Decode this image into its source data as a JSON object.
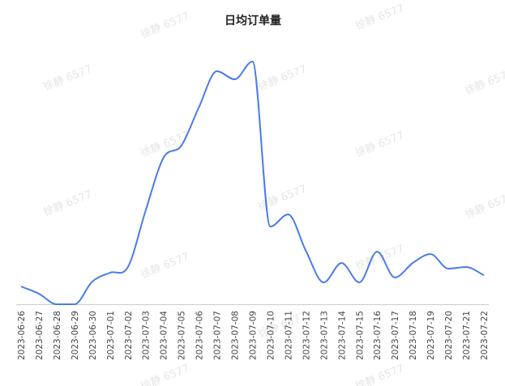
{
  "chart_data": {
    "type": "line",
    "title": "日均订单量",
    "watermark": "徐静 6577",
    "categories": [
      "2023-06-26",
      "2023-06-27",
      "2023-06-28",
      "2023-06-29",
      "2023-06-30",
      "2023-07-01",
      "2023-07-02",
      "2023-07-03",
      "2023-07-04",
      "2023-07-05",
      "2023-07-06",
      "2023-07-07",
      "2023-07-08",
      "2023-07-09",
      "2023-07-10",
      "2023-07-11",
      "2023-07-12",
      "2023-07-13",
      "2023-07-14",
      "2023-07-15",
      "2023-07-16",
      "2023-07-17",
      "2023-07-18",
      "2023-07-19",
      "2023-07-20",
      "2023-07-21",
      "2023-07-22"
    ],
    "values": [
      22,
      13,
      0,
      0,
      28,
      39,
      46,
      116,
      181,
      196,
      244,
      288,
      278,
      300,
      96,
      111,
      66,
      27,
      51,
      27,
      65,
      33,
      51,
      62,
      44,
      46,
      36
    ],
    "color": "#4a7ae8",
    "ylim": [
      0,
      300
    ],
    "smooth": true
  }
}
